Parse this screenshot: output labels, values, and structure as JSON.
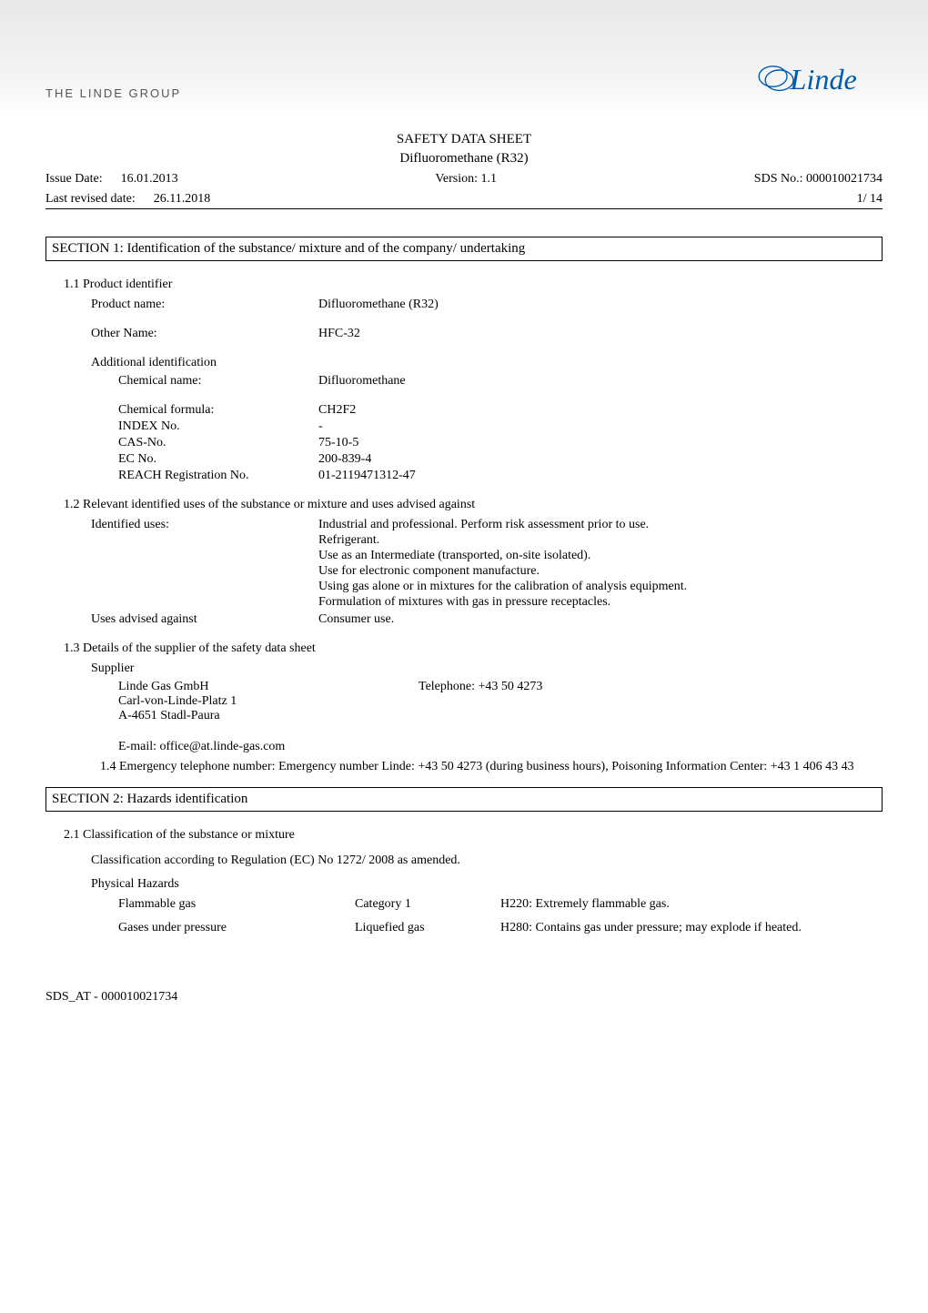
{
  "header": {
    "company_tag": "THE LINDE GROUP",
    "logo_text": "Linde",
    "logo_color": "#005ca9"
  },
  "doc": {
    "title": "SAFETY DATA SHEET",
    "subtitle": "Difluoromethane (R32)",
    "issue_date_label": "Issue Date:",
    "issue_date": "16.01.2013",
    "last_revised_label": "Last revised date:",
    "last_revised": "26.11.2018",
    "version_label": "Version:",
    "version": "1.1",
    "sds_no_label": "SDS No.:",
    "sds_no": "000010021734",
    "page": "1/ 14"
  },
  "section1": {
    "heading": "SECTION 1: Identification of the substance/ mixture and of the company/ undertaking",
    "s11_label": "1.1 Product identifier",
    "product_name_label": "Product name:",
    "product_name": "Difluoromethane (R32)",
    "other_name_label": "Other Name:",
    "other_name": "HFC-32",
    "addl_id_label": "Additional identification",
    "chemical_name_label": "Chemical name:",
    "chemical_name": "Difluoromethane",
    "chemical_formula_label": "Chemical formula:",
    "chemical_formula": "CH2F2",
    "index_no_label": "INDEX No.",
    "index_no": "-",
    "cas_no_label": "CAS-No.",
    "cas_no": "75-10-5",
    "ec_no_label": "EC No.",
    "ec_no": "200-839-4",
    "reach_label": "REACH Registration No.",
    "reach": "01-2119471312-47",
    "s12_label": "1.2 Relevant identified uses of the substance or mixture and uses advised against",
    "identified_uses_label": "Identified uses:",
    "identified_uses_lines": [
      "Industrial and professional. Perform risk assessment prior to use.",
      "Refrigerant.",
      "Use as an Intermediate (transported, on-site isolated).",
      "Use for electronic component manufacture.",
      "Using gas alone or in mixtures for the calibration of analysis equipment.",
      "Formulation of mixtures with gas in pressure receptacles."
    ],
    "uses_against_label": "Uses advised against",
    "uses_against": "Consumer use.",
    "s13_label": "1.3 Details of the supplier of the safety data sheet",
    "supplier_label": "Supplier",
    "supplier_name": "Linde Gas GmbH",
    "supplier_addr1": "Carl-von-Linde-Platz 1",
    "supplier_addr2": "A-4651 Stadl-Paura",
    "supplier_phone_label": "Telephone:",
    "supplier_phone": "+43 50 4273",
    "supplier_email_label": "E-mail:",
    "supplier_email": "office@at.linde-gas.com",
    "s14_text": "1.4 Emergency telephone number: Emergency number Linde: +43 50 4273 (during business hours), Poisoning Information Center: +43 1 406 43 43"
  },
  "section2": {
    "heading": "SECTION 2: Hazards identification",
    "s21_label": "2.1 Classification of the substance or mixture",
    "class_intro": "Classification according to Regulation (EC) No 1272/ 2008 as amended.",
    "physical_hazards_label": "Physical Hazards",
    "rows": [
      {
        "c1": "Flammable gas",
        "c2": "Category 1",
        "c3": "H220: Extremely flammable gas."
      },
      {
        "c1": "Gases under pressure",
        "c2": "Liquefied gas",
        "c3": "H280: Contains gas under pressure; may explode if heated."
      }
    ]
  },
  "footer": {
    "text": "SDS_AT - 000010021734"
  }
}
